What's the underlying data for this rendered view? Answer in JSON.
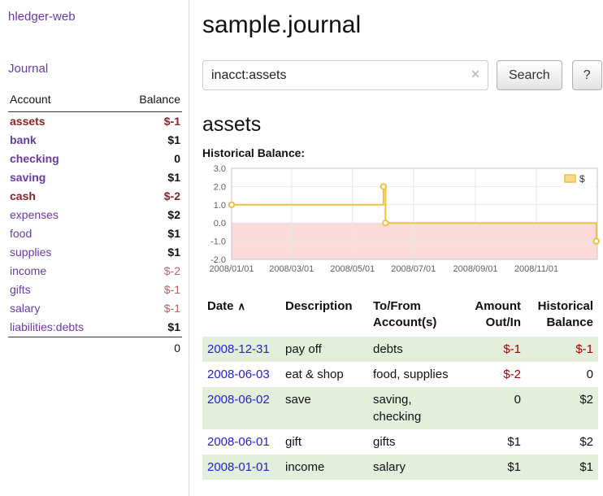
{
  "app": {
    "title": "hledger-web"
  },
  "sidebar": {
    "journal_link": "Journal",
    "headers": {
      "account": "Account",
      "balance": "Balance"
    },
    "accounts": [
      {
        "name": "assets",
        "balance": "$-1",
        "indent": 1,
        "bold": true,
        "name_negative": true,
        "balance_negative": true,
        "balance_bold": true
      },
      {
        "name": "bank",
        "balance": "$1",
        "indent": 2,
        "bold": true,
        "name_negative": false,
        "balance_negative": false,
        "balance_bold": true
      },
      {
        "name": "checking",
        "balance": "0",
        "indent": 3,
        "bold": true,
        "name_negative": false,
        "balance_negative": false,
        "balance_bold": true
      },
      {
        "name": "saving",
        "balance": "$1",
        "indent": 3,
        "bold": true,
        "name_negative": false,
        "balance_negative": false,
        "balance_bold": true
      },
      {
        "name": "cash",
        "balance": "$-2",
        "indent": 2,
        "bold": true,
        "name_negative": true,
        "balance_negative": true,
        "balance_bold": true
      },
      {
        "name": "expenses",
        "balance": "$2",
        "indent": 1,
        "bold": false,
        "name_negative": false,
        "balance_negative": false,
        "balance_bold": true
      },
      {
        "name": "food",
        "balance": "$1",
        "indent": 2,
        "bold": false,
        "name_negative": false,
        "balance_negative": false,
        "balance_bold": true
      },
      {
        "name": "supplies",
        "balance": "$1",
        "indent": 2,
        "bold": false,
        "name_negative": false,
        "balance_negative": false,
        "balance_bold": true
      },
      {
        "name": "income",
        "balance": "$-2",
        "indent": 1,
        "bold": false,
        "name_negative": false,
        "balance_negative": true,
        "balance_bold": false
      },
      {
        "name": "gifts",
        "balance": "$-1",
        "indent": 2,
        "bold": false,
        "name_negative": false,
        "balance_negative": true,
        "balance_bold": false
      },
      {
        "name": "salary",
        "balance": "$-1",
        "indent": 2,
        "bold": false,
        "name_negative": false,
        "balance_negative": true,
        "balance_bold": false
      },
      {
        "name": "liabilities:debts",
        "balance": "$1",
        "indent": 1,
        "bold": false,
        "name_negative": false,
        "balance_negative": false,
        "balance_bold": true
      }
    ],
    "total": "0"
  },
  "main": {
    "title": "sample.journal",
    "search": {
      "value": "inacct:assets",
      "clear_icon": "✕",
      "button_label": "Search",
      "help_label": "?"
    },
    "account_heading": "assets"
  },
  "chart_data": {
    "type": "line",
    "title": "Historical Balance:",
    "step": true,
    "series": [
      {
        "name": "$",
        "color": "#edc240",
        "points": [
          {
            "x": "2008-01-01",
            "y": 1
          },
          {
            "x": "2008-06-01",
            "y": 2
          },
          {
            "x": "2008-06-03",
            "y": 0
          },
          {
            "x": "2008-12-31",
            "y": -1
          }
        ]
      }
    ],
    "xlim": [
      "2008-01-01",
      "2009-01-01"
    ],
    "ylim": [
      -2,
      3
    ],
    "yticks": [
      3.0,
      2.0,
      1.0,
      0.0,
      -1.0,
      -2.0
    ],
    "xticks": [
      "2008/01/01",
      "2008/03/01",
      "2008/05/01",
      "2008/07/01",
      "2008/09/01",
      "2008/11/01"
    ],
    "grid": true,
    "negative_region_color": "#fbdada",
    "legend": {
      "label": "$",
      "position": "top-right"
    }
  },
  "register": {
    "headers": {
      "date": "Date",
      "description": "Description",
      "accounts": "To/From Account(s)",
      "amount": "Amount Out/In",
      "balance": "Historical Balance"
    },
    "sort_icon": "∧",
    "rows": [
      {
        "date": "2008-12-31",
        "description": "pay off",
        "accounts": "debts",
        "amount": "$-1",
        "amount_negative": true,
        "balance": "$-1",
        "balance_negative": true,
        "shaded": true
      },
      {
        "date": "2008-06-03",
        "description": "eat & shop",
        "accounts": "food, supplies",
        "amount": "$-2",
        "amount_negative": true,
        "balance": "0",
        "balance_negative": false,
        "shaded": false
      },
      {
        "date": "2008-06-02",
        "description": "save",
        "accounts": "saving, checking",
        "amount": "0",
        "amount_negative": false,
        "balance": "$2",
        "balance_negative": false,
        "shaded": true
      },
      {
        "date": "2008-06-01",
        "description": "gift",
        "accounts": "gifts",
        "amount": "$1",
        "amount_negative": false,
        "balance": "$2",
        "balance_negative": false,
        "shaded": false
      },
      {
        "date": "2008-01-01",
        "description": "income",
        "accounts": "salary",
        "amount": "$1",
        "amount_negative": false,
        "balance": "$1",
        "balance_negative": false,
        "shaded": true
      }
    ]
  },
  "colors": {
    "link_purple": "#6a3aa2",
    "date_link_blue": "#2222cc",
    "negative_red": "#a40000",
    "sidebar_negative_bold": "#8b2323",
    "sidebar_negative_light": "#b06565",
    "row_shade_green": "#e3efdb",
    "chart_line": "#edc240",
    "chart_negative_region": "#fbdada"
  }
}
